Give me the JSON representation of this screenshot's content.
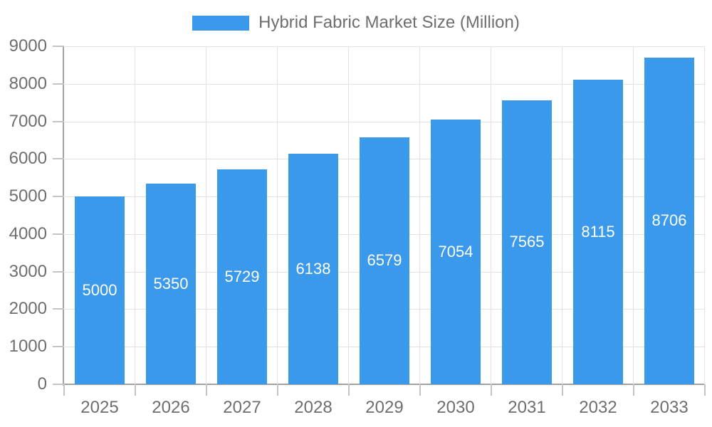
{
  "chart_data": {
    "type": "bar",
    "title": "Hybrid Fabric Market Size (Million)",
    "legend_position": "top",
    "categories": [
      "2025",
      "2026",
      "2027",
      "2028",
      "2029",
      "2030",
      "2031",
      "2032",
      "2033"
    ],
    "values": [
      5000,
      5350,
      5729,
      6138,
      6579,
      7054,
      7565,
      8115,
      8706
    ],
    "xlabel": "",
    "ylabel": "",
    "ylim": [
      0,
      9000
    ],
    "ytick_step": 1000,
    "yticks": [
      "0",
      "1000",
      "2000",
      "3000",
      "4000",
      "5000",
      "6000",
      "7000",
      "8000",
      "9000"
    ],
    "grid": true,
    "bar_value_labels_position": "center-inside",
    "colors": {
      "bar": "#3A99EB",
      "bar_label": "#FFFFFF",
      "grid": "#E2E2E2",
      "axis": "#A2A2A2",
      "tick": "#C4C4C4",
      "text": "#6E6E6E",
      "background": "#FFFFFF"
    }
  }
}
